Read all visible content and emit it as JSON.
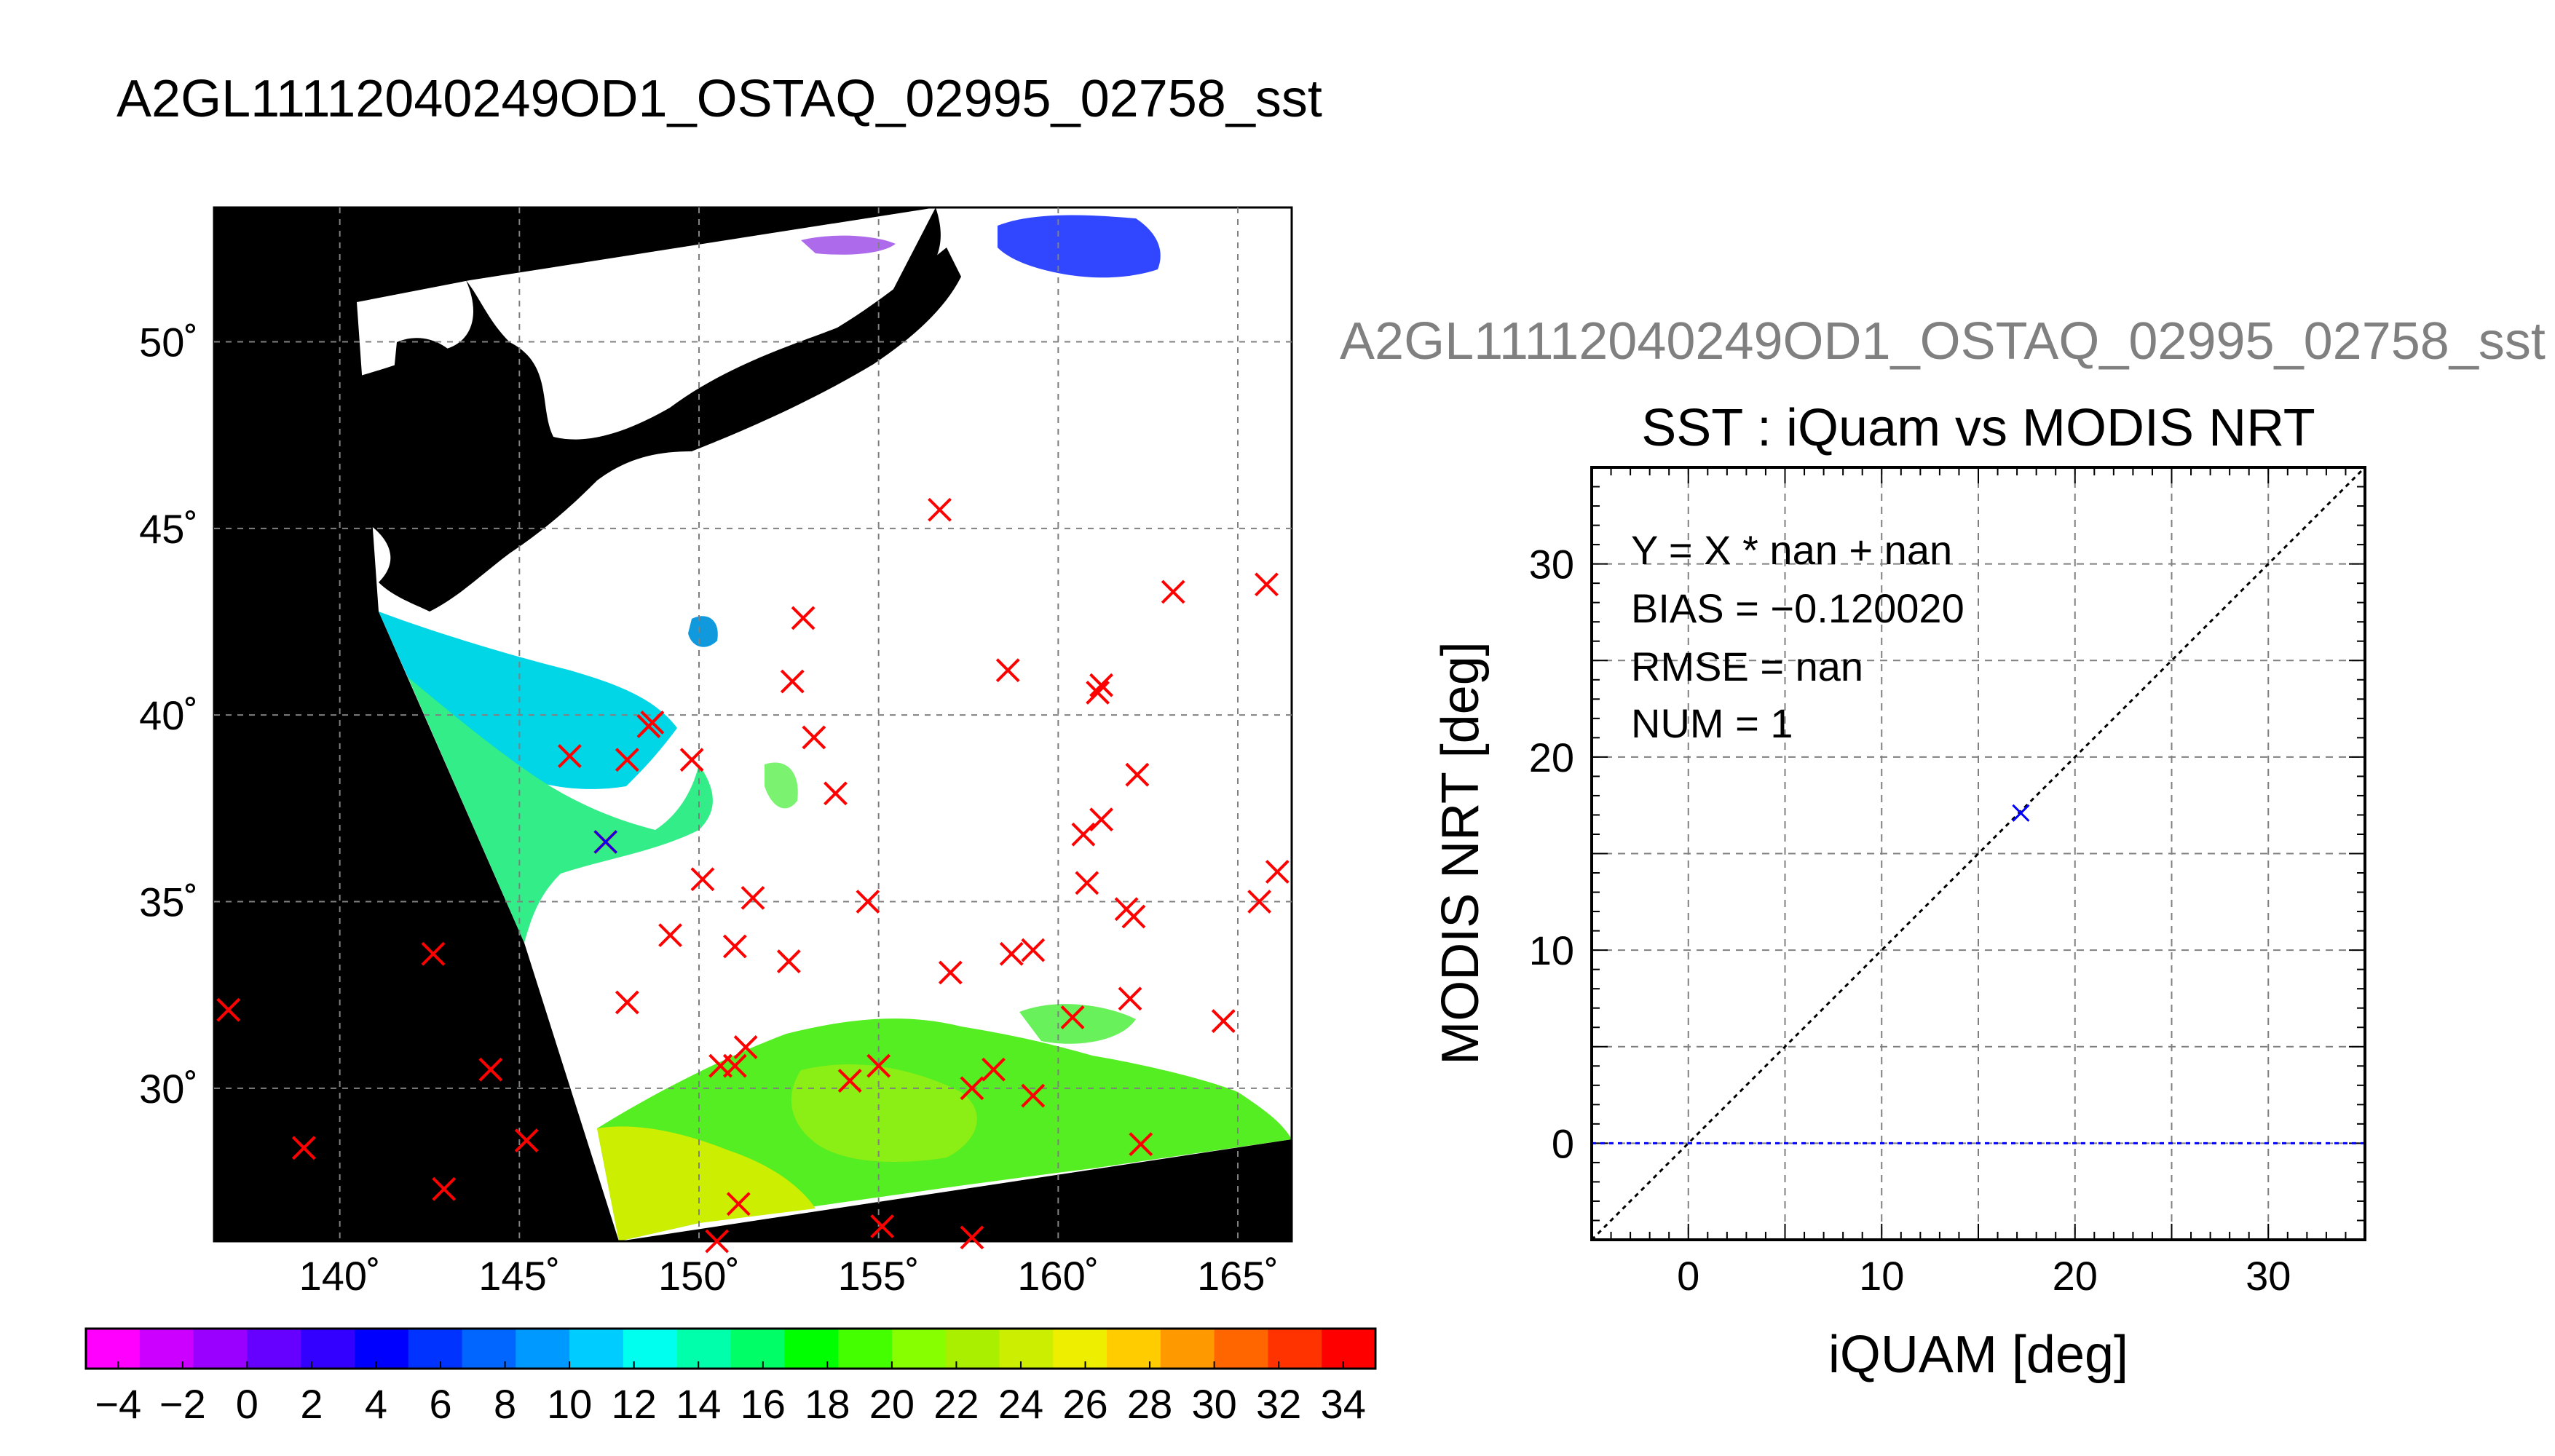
{
  "main_title": "A2GL11112040249OD1_OSTAQ_02995_02758_sst",
  "scatter_overtitle": "A2GL11112040249OD1_OSTAQ_02995_02758_sst",
  "colors": {
    "ocean_mask": "#000000",
    "no_data": "#ffffff",
    "marker_map": "#ff0000",
    "marker_scatter": "#0000ff",
    "zero_line": "#0000ff"
  },
  "chart_data": [
    {
      "type": "heatmap",
      "title": "",
      "x_tick_labels": [
        "140˚",
        "145˚",
        "150˚",
        "155˚",
        "160˚",
        "165˚"
      ],
      "y_tick_labels": [
        "50˚",
        "45˚",
        "40˚",
        "35˚",
        "30˚"
      ],
      "x_ticks": [
        140,
        145,
        150,
        155,
        160,
        165
      ],
      "y_ticks": [
        50,
        45,
        40,
        35,
        30
      ],
      "xlim": [
        136.5,
        166.5
      ],
      "ylim": [
        25.9,
        53.6
      ],
      "grid": true,
      "marker": "x",
      "matchup_points": [
        [
          156.7,
          45.5
        ],
        [
          165.8,
          43.5
        ],
        [
          163.2,
          43.3
        ],
        [
          152.9,
          42.6
        ],
        [
          158.6,
          41.2
        ],
        [
          161.2,
          40.8
        ],
        [
          161.1,
          40.6
        ],
        [
          152.6,
          40.9
        ],
        [
          148.7,
          39.8
        ],
        [
          148.6,
          39.7
        ],
        [
          153.2,
          39.4
        ],
        [
          146.4,
          38.9
        ],
        [
          148.0,
          38.8
        ],
        [
          149.8,
          38.8
        ],
        [
          162.2,
          38.4
        ],
        [
          153.8,
          37.9
        ],
        [
          161.2,
          37.2
        ],
        [
          160.7,
          36.8
        ],
        [
          147.4,
          36.6
        ],
        [
          166.1,
          35.8
        ],
        [
          150.1,
          35.6
        ],
        [
          160.8,
          35.5
        ],
        [
          151.5,
          35.1
        ],
        [
          154.7,
          35.0
        ],
        [
          161.9,
          34.8
        ],
        [
          162.1,
          34.6
        ],
        [
          165.6,
          35.0
        ],
        [
          149.2,
          34.1
        ],
        [
          151.0,
          33.8
        ],
        [
          152.5,
          33.4
        ],
        [
          158.7,
          33.6
        ],
        [
          159.3,
          33.7
        ],
        [
          157.0,
          33.1
        ],
        [
          142.6,
          33.6
        ],
        [
          148.0,
          32.3
        ],
        [
          162.0,
          32.4
        ],
        [
          160.4,
          31.9
        ],
        [
          164.6,
          31.8
        ],
        [
          136.9,
          32.1
        ],
        [
          151.3,
          31.1
        ],
        [
          150.6,
          30.6
        ],
        [
          151.0,
          30.6
        ],
        [
          155.0,
          30.6
        ],
        [
          154.2,
          30.2
        ],
        [
          157.6,
          30.0
        ],
        [
          158.2,
          30.5
        ],
        [
          144.2,
          30.5
        ],
        [
          159.3,
          29.8
        ],
        [
          162.3,
          28.5
        ],
        [
          145.2,
          28.6
        ],
        [
          139.0,
          28.4
        ],
        [
          142.9,
          27.3
        ],
        [
          151.1,
          26.9
        ],
        [
          155.1,
          26.3
        ],
        [
          150.5,
          25.9
        ],
        [
          157.6,
          26.0
        ]
      ],
      "colorbar": {
        "min": -5,
        "max": 35,
        "tick_labels": [
          "−4",
          "−2",
          "0",
          "2",
          "4",
          "6",
          "8",
          "10",
          "12",
          "14",
          "16",
          "18",
          "20",
          "22",
          "24",
          "26",
          "28",
          "30",
          "32",
          "34"
        ],
        "colors": [
          "#ff00ff",
          "#cc00ff",
          "#9900ff",
          "#6600ff",
          "#3300ff",
          "#0000ff",
          "#0033ff",
          "#0066ff",
          "#0099ff",
          "#00ccff",
          "#00ffee",
          "#00ffaa",
          "#00ff66",
          "#00ff00",
          "#44ff00",
          "#88ff00",
          "#aaee00",
          "#ccee00",
          "#eeee00",
          "#ffcc00",
          "#ff9900",
          "#ff6600",
          "#ff3300",
          "#ff0000"
        ]
      }
    },
    {
      "type": "scatter",
      "title": "SST : iQuam vs MODIS NRT",
      "xlabel": "iQUAM [deg]",
      "ylabel": "MODIS NRT [deg]",
      "xlim": [
        -5,
        35
      ],
      "ylim": [
        -5,
        35
      ],
      "x_ticks": [
        0,
        10,
        20,
        30
      ],
      "y_ticks": [
        0,
        10,
        20,
        30
      ],
      "x_tick_labels": [
        "0",
        "10",
        "20",
        "30"
      ],
      "y_tick_labels": [
        "0",
        "10",
        "20",
        "30"
      ],
      "grid": true,
      "points": [
        {
          "x": 17.2,
          "y": 17.1
        }
      ],
      "reference_lines": [
        "y = x",
        "y = 0"
      ],
      "annotations": [
        "Y = X * nan + nan",
        "BIAS = −0.120020",
        "RMSE = nan",
        "NUM = 1"
      ]
    }
  ]
}
